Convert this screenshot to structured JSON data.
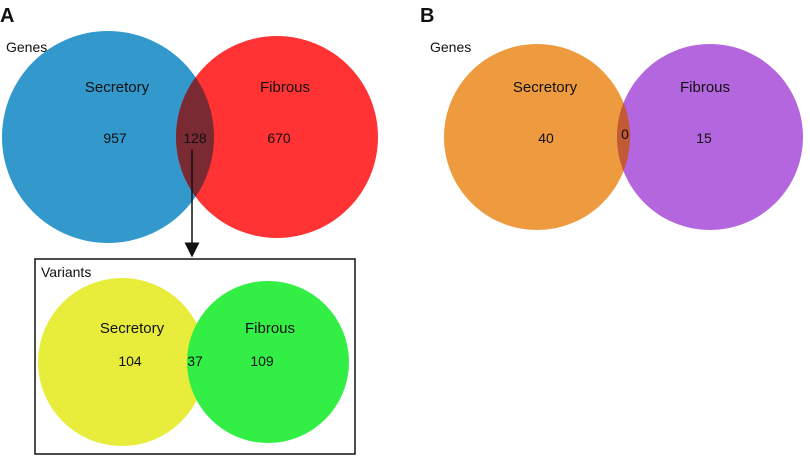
{
  "panel_a": {
    "label": "A",
    "genes": {
      "title": "Genes",
      "left": {
        "label": "Secretory",
        "count": "957",
        "color": "#3399cc"
      },
      "right": {
        "label": "Fibrous",
        "count": "670",
        "color": "#ff3333"
      },
      "overlap": {
        "count": "128",
        "color": "#7a2a32"
      }
    },
    "variants": {
      "title": "Variants",
      "left": {
        "label": "Secretory",
        "count": "104",
        "color": "#e8ec3a"
      },
      "right": {
        "label": "Fibrous",
        "count": "109",
        "color": "#33ee44"
      },
      "overlap": {
        "count": "37",
        "color": "#8fdd33"
      }
    }
  },
  "panel_b": {
    "label": "B",
    "genes": {
      "title": "Genes",
      "left": {
        "label": "Secretory",
        "count": "40",
        "color": "#ee9a3e"
      },
      "right": {
        "label": "Fibrous",
        "count": "15",
        "color": "#b366dd"
      },
      "overlap": {
        "count": "0",
        "color": "#c25a36"
      }
    }
  }
}
